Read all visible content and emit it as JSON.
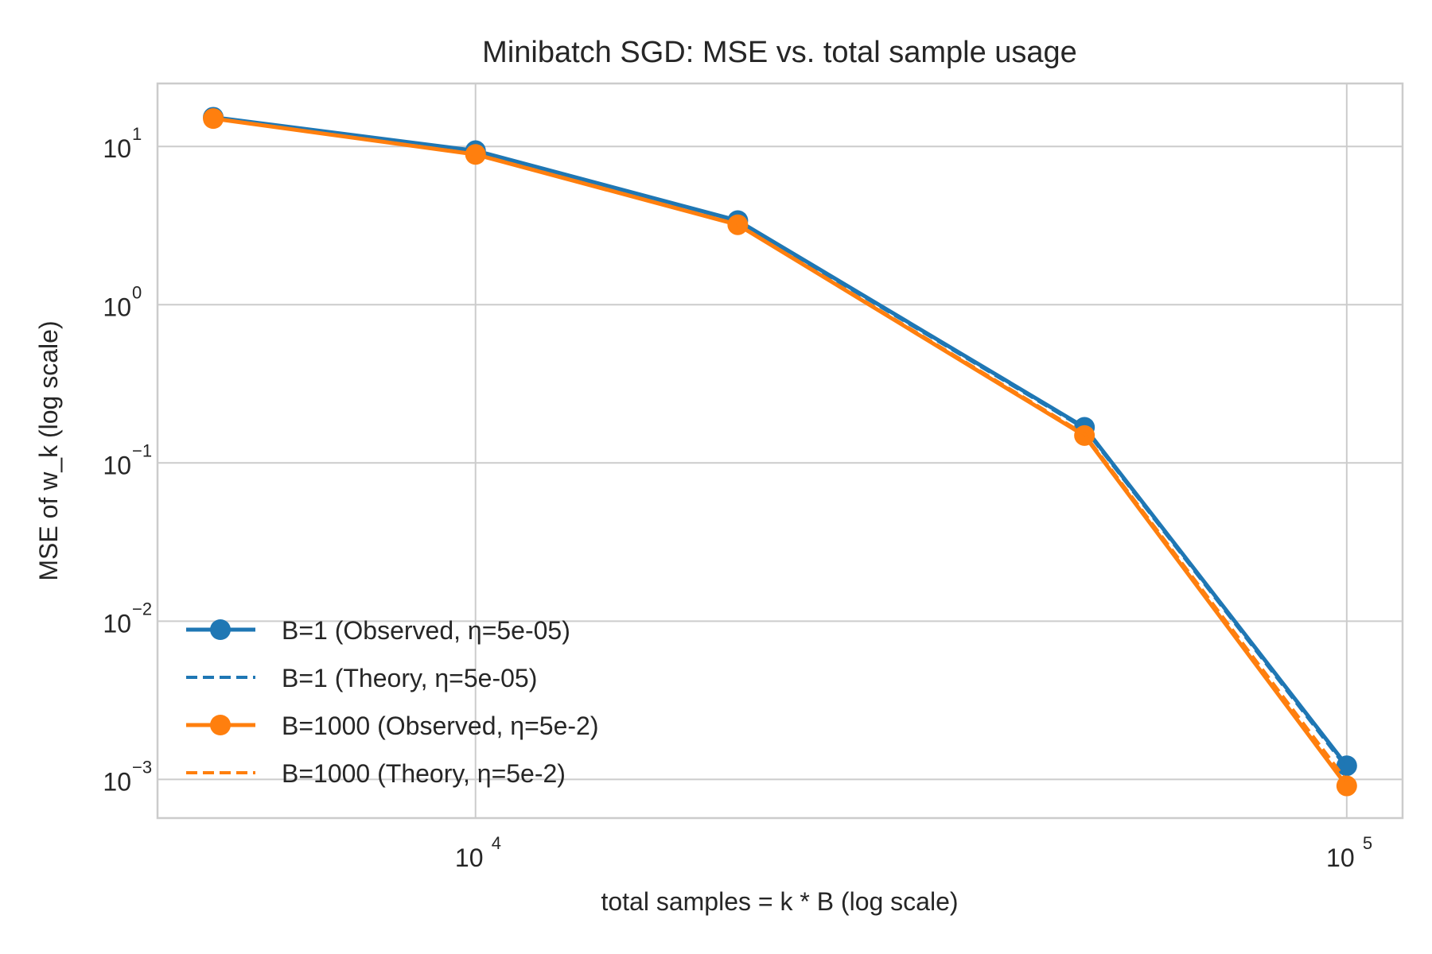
{
  "chart_data": {
    "type": "line",
    "title": "Minibatch SGD: MSE vs. total sample usage",
    "xlabel": "total samples = k * B (log scale)",
    "ylabel": "MSE of w_k (log scale)",
    "xscale": "log",
    "yscale": "log",
    "xlim": [
      4315,
      115900
    ],
    "ylim": [
      0.00057,
      25
    ],
    "grid": true,
    "legend_position": "lower-left",
    "x_ticks": [
      {
        "value": 10000,
        "base": "10",
        "exp": "4"
      },
      {
        "value": 100000,
        "base": "10",
        "exp": "5"
      }
    ],
    "y_ticks": [
      {
        "value": 10,
        "base": "10",
        "exp": "1"
      },
      {
        "value": 1,
        "base": "10",
        "exp": "0"
      },
      {
        "value": 0.1,
        "base": "10",
        "exp": "−1"
      },
      {
        "value": 0.01,
        "base": "10",
        "exp": "−2"
      },
      {
        "value": 0.001,
        "base": "10",
        "exp": "−3"
      }
    ],
    "x": [
      5000,
      10000,
      20000,
      50000,
      100000
    ],
    "series": [
      {
        "name": "B=1 (Observed, η=5e-05)",
        "color": "#1f77b4",
        "style": "solid-marker",
        "values": [
          15.3,
          9.4,
          3.4,
          0.168,
          0.00122
        ]
      },
      {
        "name": "B=1 (Theory, η=5e-05)",
        "color": "#1f77b4",
        "style": "dashed",
        "values": [
          15.2,
          9.3,
          3.35,
          0.165,
          0.00118
        ]
      },
      {
        "name": "B=1000 (Observed, η=5e-2)",
        "color": "#ff7f0e",
        "style": "solid-marker",
        "values": [
          15.0,
          8.9,
          3.2,
          0.149,
          0.00091
        ]
      },
      {
        "name": "B=1000 (Theory, η=5e-2)",
        "color": "#ff7f0e",
        "style": "dashed",
        "values": [
          15.0,
          8.95,
          3.22,
          0.152,
          0.00098
        ]
      }
    ]
  }
}
